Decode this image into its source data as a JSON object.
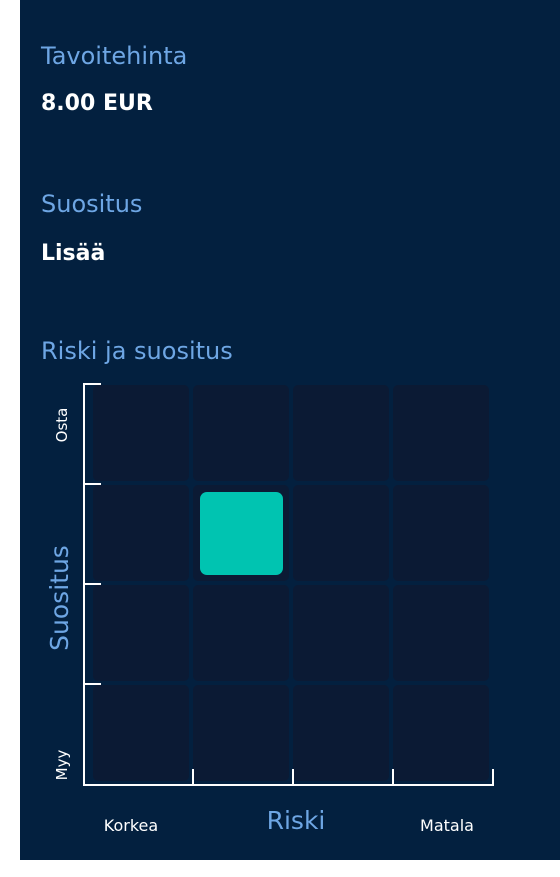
{
  "summary": {
    "target_price_label": "Tavoitehinta",
    "target_price": "8.00 EUR",
    "recommendation_label": "Suositus",
    "recommendation": "Lisää"
  },
  "matrix": {
    "title": "Riski ja suositus",
    "y_axis_label": "Suositus",
    "y_top_label": "Osta",
    "y_bottom_label": "Myy",
    "x_axis_label": "Riski",
    "x_left_label": "Korkea",
    "x_right_label": "Matala",
    "selected": {
      "risk": 2,
      "recommendation": 3
    }
  }
}
